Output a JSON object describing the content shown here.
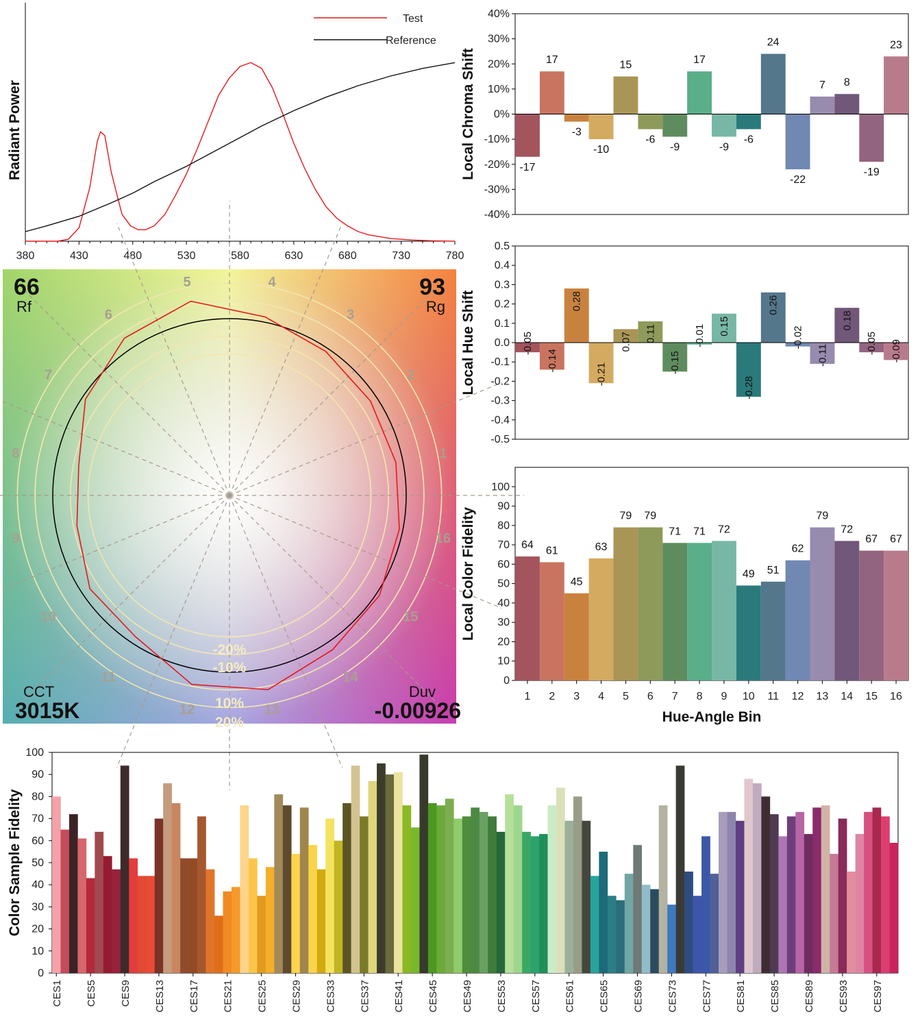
{
  "chart_data": [
    {
      "id": "spectrum",
      "type": "line",
      "title": "",
      "xlabel": "",
      "ylabel": "Radiant Power",
      "xlim": [
        380,
        780
      ],
      "xticks": [
        380,
        430,
        480,
        530,
        580,
        630,
        680,
        730,
        780
      ],
      "legend_position": "top-right",
      "series": [
        {
          "name": "Test",
          "color": "#e31a1c",
          "points": [
            [
              380,
              0.0
            ],
            [
              390,
              0.0
            ],
            [
              400,
              0.0
            ],
            [
              410,
              0.0
            ],
            [
              420,
              0.01
            ],
            [
              430,
              0.07
            ],
            [
              440,
              0.28
            ],
            [
              447,
              0.52
            ],
            [
              450,
              0.57
            ],
            [
              454,
              0.55
            ],
            [
              460,
              0.36
            ],
            [
              465,
              0.25
            ],
            [
              470,
              0.14
            ],
            [
              478,
              0.08
            ],
            [
              485,
              0.06
            ],
            [
              492,
              0.06
            ],
            [
              500,
              0.08
            ],
            [
              510,
              0.14
            ],
            [
              520,
              0.24
            ],
            [
              530,
              0.35
            ],
            [
              540,
              0.48
            ],
            [
              550,
              0.62
            ],
            [
              560,
              0.76
            ],
            [
              570,
              0.85
            ],
            [
              580,
              0.91
            ],
            [
              590,
              0.93
            ],
            [
              600,
              0.9
            ],
            [
              610,
              0.8
            ],
            [
              620,
              0.66
            ],
            [
              630,
              0.51
            ],
            [
              640,
              0.38
            ],
            [
              650,
              0.27
            ],
            [
              660,
              0.18
            ],
            [
              670,
              0.12
            ],
            [
              680,
              0.08
            ],
            [
              690,
              0.05
            ],
            [
              700,
              0.033
            ],
            [
              720,
              0.014
            ],
            [
              740,
              0.006
            ],
            [
              760,
              0.002
            ],
            [
              780,
              0.0
            ]
          ]
        },
        {
          "name": "Reference",
          "color": "#111111",
          "points": [
            [
              380,
              0.05
            ],
            [
              400,
              0.08
            ],
            [
              430,
              0.13
            ],
            [
              460,
              0.2
            ],
            [
              480,
              0.25
            ],
            [
              500,
              0.31
            ],
            [
              530,
              0.39
            ],
            [
              560,
              0.48
            ],
            [
              580,
              0.54
            ],
            [
              600,
              0.6
            ],
            [
              630,
              0.68
            ],
            [
              660,
              0.75
            ],
            [
              690,
              0.81
            ],
            [
              720,
              0.86
            ],
            [
              750,
              0.9
            ],
            [
              780,
              0.93
            ]
          ]
        }
      ]
    },
    {
      "id": "vector",
      "type": "scatter",
      "rf_value": "66",
      "rf_label": "Rf",
      "rg_value": "93",
      "rg_label": "Rg",
      "cct_label": "CCT",
      "cct_value": "3015K",
      "duv_label": "Duv",
      "duv_value": "-0.00926",
      "ring_labels": [
        "-20%",
        "-10%",
        "10%",
        "20%"
      ],
      "bin_labels": [
        "1",
        "2",
        "3",
        "4",
        "5",
        "6",
        "7",
        "8",
        "9",
        "10",
        "11",
        "12",
        "13",
        "14",
        "15",
        "16"
      ],
      "test_radius": [
        0.96,
        0.96,
        0.98,
        1.03,
        1.12,
        1.07,
        0.98,
        0.87,
        0.88,
        0.95,
        0.96,
        1.09,
        1.12,
        1.05,
        1.02,
        0.98
      ]
    },
    {
      "id": "chroma",
      "type": "bar",
      "title": "",
      "xlabel": "",
      "ylabel": "Local Chroma Shift",
      "ylim": [
        -40,
        40
      ],
      "yticks": [
        -40,
        -30,
        -20,
        -10,
        0,
        10,
        20,
        30,
        40
      ],
      "tick_labels": [
        "-40%",
        "-30%",
        "-20%",
        "-10%",
        "0%",
        "10%",
        "20%",
        "30%",
        "40%"
      ],
      "categories": [
        "1",
        "2",
        "3",
        "4",
        "5",
        "6",
        "7",
        "8",
        "9",
        "10",
        "11",
        "12",
        "13",
        "14",
        "15",
        "16"
      ],
      "values": [
        -17,
        17,
        -3,
        -10,
        15,
        -6,
        -9,
        17,
        -9,
        -6,
        24,
        -22,
        7,
        8,
        -19,
        23
      ],
      "labels": [
        "-17",
        "17",
        "-3",
        "-10",
        "15",
        "-6",
        "-9",
        "17",
        "-9",
        "-6",
        "24",
        "-22",
        "7",
        "8",
        "-19",
        "23"
      ]
    },
    {
      "id": "hue",
      "type": "bar",
      "title": "",
      "xlabel": "",
      "ylabel": "Local Hue Shift",
      "ylim": [
        -0.5,
        0.5
      ],
      "yticks": [
        -0.5,
        -0.4,
        -0.3,
        -0.2,
        -0.1,
        0.0,
        0.1,
        0.2,
        0.3,
        0.4,
        0.5
      ],
      "tick_labels": [
        "-0.5",
        "-0.4",
        "-0.3",
        "-0.2",
        "-0.1",
        "0.0",
        "0.1",
        "0.2",
        "0.3",
        "0.4",
        "0.5"
      ],
      "categories": [
        "1",
        "2",
        "3",
        "4",
        "5",
        "6",
        "7",
        "8",
        "9",
        "10",
        "11",
        "12",
        "13",
        "14",
        "15",
        "16"
      ],
      "values": [
        -0.05,
        -0.14,
        0.28,
        -0.21,
        0.07,
        0.11,
        -0.15,
        -0.01,
        0.15,
        -0.28,
        0.26,
        -0.02,
        -0.11,
        0.18,
        -0.05,
        -0.09
      ],
      "labels": [
        "-0.05",
        "-0.14",
        "0.28",
        "-0.21",
        "0.07",
        "0.11",
        "-0.15",
        "-0.01",
        "0.15",
        "-0.28",
        "0.26",
        "-0.02",
        "-0.11",
        "0.18",
        "-0.05",
        "-0.09"
      ]
    },
    {
      "id": "fidelity",
      "type": "bar",
      "title": "",
      "xlabel": "Hue-Angle Bin",
      "ylabel": "Local Color Fidelity",
      "ylim": [
        0,
        110
      ],
      "yticks": [
        0,
        10,
        20,
        30,
        40,
        50,
        60,
        70,
        80,
        90,
        100
      ],
      "categories": [
        "1",
        "2",
        "3",
        "4",
        "5",
        "6",
        "7",
        "8",
        "9",
        "10",
        "11",
        "12",
        "13",
        "14",
        "15",
        "16"
      ],
      "values": [
        64,
        61,
        45,
        63,
        79,
        79,
        71,
        71,
        72,
        49,
        51,
        62,
        79,
        72,
        67,
        67
      ],
      "labels": [
        "64",
        "61",
        "45",
        "63",
        "79",
        "79",
        "71",
        "71",
        "72",
        "49",
        "51",
        "62",
        "79",
        "72",
        "67",
        "67"
      ]
    },
    {
      "id": "ces",
      "type": "bar",
      "title": "",
      "xlabel": "",
      "ylabel": "Color Sample Fidelity",
      "ylim": [
        0,
        100
      ],
      "yticks": [
        0,
        10,
        20,
        30,
        40,
        50,
        60,
        70,
        80,
        90,
        100
      ],
      "tick_labels": [
        "CES1",
        "CES5",
        "CES9",
        "CES13",
        "CES17",
        "CES21",
        "CES25",
        "CES29",
        "CES33",
        "CES37",
        "CES41",
        "CES45",
        "CES49",
        "CES53",
        "CES57",
        "CES61",
        "CES65",
        "CES69",
        "CES73",
        "CES77",
        "CES81",
        "CES85",
        "CES89",
        "CES93",
        "CES97"
      ],
      "values": [
        80,
        65,
        72,
        61,
        43,
        64,
        53,
        47,
        94,
        52,
        44,
        44,
        70,
        86,
        77,
        52,
        52,
        71,
        47,
        26,
        37,
        39,
        76,
        52,
        35,
        48,
        81,
        76,
        54,
        75,
        58,
        47,
        70,
        60,
        77,
        94,
        71,
        87,
        95,
        90,
        91,
        76,
        66,
        99,
        77,
        76,
        79,
        70,
        71,
        75,
        73,
        71,
        64,
        81,
        76,
        64,
        62,
        63,
        76,
        84,
        69,
        80,
        69,
        44,
        55,
        35,
        33,
        45,
        58,
        40,
        38,
        76,
        31,
        94,
        46,
        35,
        62,
        45,
        73,
        73,
        69,
        88,
        86,
        80,
        72,
        62,
        71,
        73,
        63,
        75,
        76,
        54,
        70,
        46,
        63,
        73,
        75,
        71,
        59
      ],
      "colors": [
        "#f4a1a8",
        "#c44d5c",
        "#3c2326",
        "#d6676c",
        "#b42a3d",
        "#a04a4f",
        "#951b33",
        "#96223b",
        "#3c2b2a",
        "#e43c3c",
        "#e14a34",
        "#ea4a36",
        "#7b3227",
        "#c59c7e",
        "#c9865f",
        "#8f4b2b",
        "#944a25",
        "#a5582e",
        "#e0752a",
        "#e06e17",
        "#f08a24",
        "#f49a2a",
        "#fdd48b",
        "#fbc64a",
        "#e29a1f",
        "#f3ae2a",
        "#a38a59",
        "#5e4b2e",
        "#fbd44c",
        "#a0864c",
        "#f8d448",
        "#d3a911",
        "#f4e35e",
        "#c2b523",
        "#5b5526",
        "#d3c391",
        "#7a7a2b",
        "#ded57c",
        "#3c3b2c",
        "#6a6a3c",
        "#ece39e",
        "#8cb825",
        "#77b92a",
        "#383a2c",
        "#4c9822",
        "#6caa38",
        "#7cae51",
        "#8fcb6a",
        "#4f8c3c",
        "#4c8944",
        "#69a063",
        "#3f7b3b",
        "#27663a",
        "#b5e09b",
        "#9ed68e",
        "#3ba765",
        "#2ca36b",
        "#1f8f5a",
        "#c9ecc6",
        "#dce0b8",
        "#9ab09b",
        "#989d88",
        "#45473d",
        "#27a49b",
        "#1d6a78",
        "#2c7d85",
        "#2b6d7a",
        "#71a6a4",
        "#6f7a75",
        "#90bcc8",
        "#2a4b5e",
        "#b3b2a3",
        "#3d7ac0",
        "#3a3a35",
        "#2e4c80",
        "#3f54ab",
        "#3b58a8",
        "#4f6196",
        "#a89cbd",
        "#8e85ac",
        "#5f3f82",
        "#e0c7cd",
        "#c0aabd",
        "#3e2c30",
        "#4f3a52",
        "#ac76b3",
        "#6e3e7a",
        "#b865a6",
        "#6f2d5f",
        "#8a2b6c",
        "#d1b3a6",
        "#c57a96",
        "#8a2b5a",
        "#e18d9e",
        "#de85a3",
        "#d7507f",
        "#a8284e",
        "#dd3e72",
        "#c8235a"
      ]
    }
  ]
}
